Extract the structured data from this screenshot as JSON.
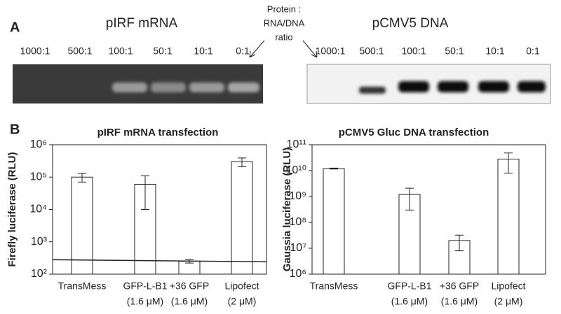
{
  "panel_labels": {
    "a": "A",
    "b": "B"
  },
  "gels": {
    "left": {
      "title": "pIRF mRNA",
      "lanes": [
        "1000:1",
        "500:1",
        "100:1",
        "50:1",
        "10:1",
        "0:1"
      ]
    },
    "right": {
      "title": "pCMV5 DNA",
      "lanes": [
        "1000:1",
        "500:1",
        "100:1",
        "50:1",
        "10:1",
        "0:1"
      ]
    },
    "ratio_note": [
      "Protein :",
      "RNA/DNA",
      "ratio"
    ]
  },
  "chart_data": [
    {
      "type": "bar",
      "title": "pIRF mRNA transfection",
      "y_label": "Firefly  luciferase (RLU)",
      "log_scale": true,
      "color": "#ffffff",
      "categories": [
        [
          "TransMess"
        ],
        [
          "GFP-L-B1",
          "(1.6 μM)"
        ],
        [
          "+36 GFP",
          "(1.6 μM)"
        ],
        [
          "Lipofect",
          "(2 μM)"
        ]
      ],
      "values": [
        100000,
        60000,
        250,
        300000
      ],
      "errors": [
        30000,
        50000,
        30,
        90000
      ],
      "reference_line": 280,
      "ylim": [
        100,
        1000000
      ],
      "yticks": [
        {
          "value": 100,
          "label": "10²"
        },
        {
          "value": 1000,
          "label": "10³"
        },
        {
          "value": 10000,
          "label": "10⁴"
        },
        {
          "value": 100000,
          "label": "10⁵"
        },
        {
          "value": 1000000,
          "label": "10⁶"
        }
      ]
    },
    {
      "type": "bar",
      "title": "pCMV5 Gluc DNA transfection",
      "y_label": "Gaussia luciferase (RLU)",
      "log_scale": true,
      "color": "#ffffff",
      "categories": [
        [
          "TransMess"
        ],
        [
          "GFP-L-B1",
          "(1.6 μM)"
        ],
        [
          "+36 GFP",
          "(1.6 μM)"
        ],
        [
          "Lipofect",
          "(2 μM)"
        ]
      ],
      "values": [
        12000000000,
        1200000000,
        20000000,
        28000000000
      ],
      "errors": [
        500000000,
        900000000,
        12000000,
        20000000000
      ],
      "ylim": [
        1000000,
        100000000000
      ],
      "yticks": [
        {
          "value": 1000000,
          "label": "10⁶"
        },
        {
          "value": 10000000,
          "label": "10⁷"
        },
        {
          "value": 100000000,
          "label": "10⁸"
        },
        {
          "value": 1000000000,
          "label": "10⁹"
        },
        {
          "value": 10000000000,
          "label": "10¹⁰"
        },
        {
          "value": 100000000000,
          "label": "10¹¹"
        }
      ]
    }
  ]
}
